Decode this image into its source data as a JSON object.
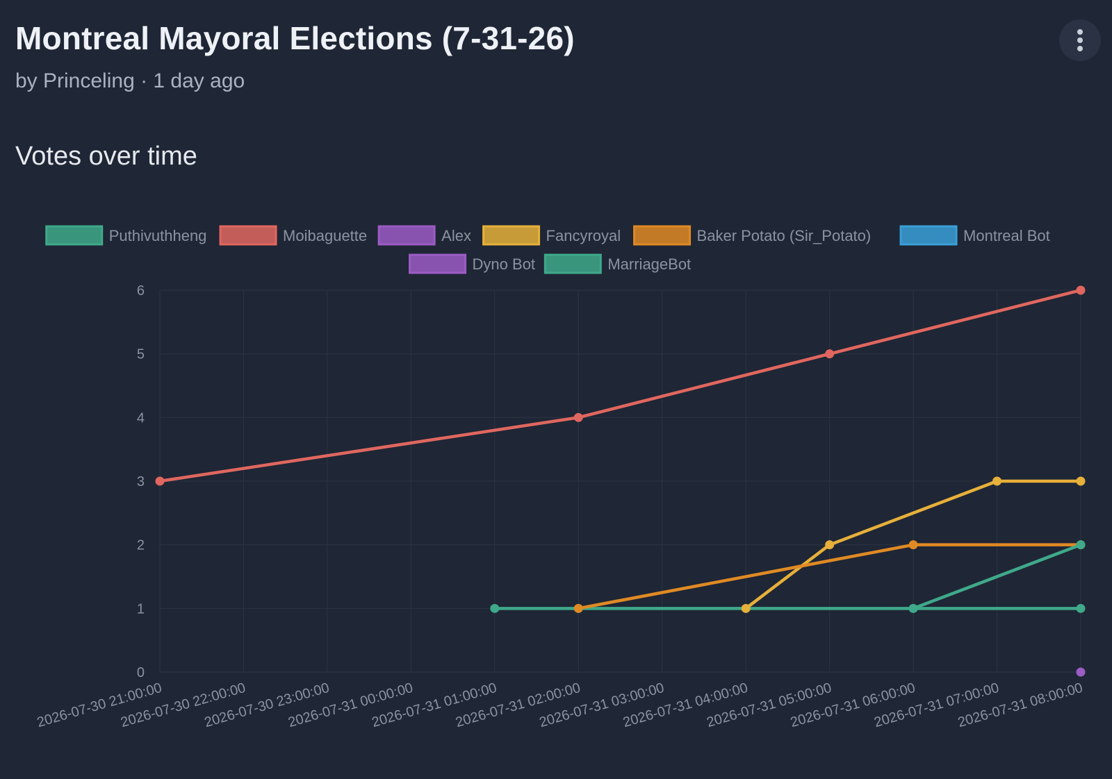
{
  "header": {
    "title": "Montreal Mayoral Elections (7-31-26)",
    "subtitle": "by Princeling · 1 day ago",
    "menu_icon": "more-vertical-icon"
  },
  "section": {
    "title": "Votes over time"
  },
  "colors": {
    "background": "#1f2635",
    "grid": "#2b3242",
    "tick_text": "#8c93a0"
  },
  "chart_data": {
    "type": "line",
    "title": "Votes over time",
    "xlabel": "",
    "ylabel": "",
    "x": [
      "2026-07-30 21:00:00",
      "2026-07-30 22:00:00",
      "2026-07-30 23:00:00",
      "2026-07-31 00:00:00",
      "2026-07-31 01:00:00",
      "2026-07-31 02:00:00",
      "2026-07-31 03:00:00",
      "2026-07-31 04:00:00",
      "2026-07-31 05:00:00",
      "2026-07-31 06:00:00",
      "2026-07-31 07:00:00",
      "2026-07-31 08:00:00"
    ],
    "ylim": [
      0,
      6
    ],
    "yticks": [
      0,
      1,
      2,
      3,
      4,
      5,
      6
    ],
    "grid": true,
    "legend": "top",
    "series": [
      {
        "name": "Puthivuthheng",
        "color": "#3fa98a",
        "points": [
          [
            "2026-07-31 01:00:00",
            1
          ],
          [
            "2026-07-31 02:00:00",
            1
          ],
          [
            "2026-07-31 06:00:00",
            1
          ],
          [
            "2026-07-31 08:00:00",
            1
          ]
        ]
      },
      {
        "name": "Moibaguette",
        "color": "#e0675f",
        "points": [
          [
            "2026-07-30 21:00:00",
            3
          ],
          [
            "2026-07-31 02:00:00",
            4
          ],
          [
            "2026-07-31 05:00:00",
            5
          ],
          [
            "2026-07-31 08:00:00",
            6
          ]
        ]
      },
      {
        "name": "Alex",
        "color": "#9b5cc4",
        "points": []
      },
      {
        "name": "Fancyroyal",
        "color": "#e6b03a",
        "points": [
          [
            "2026-07-31 04:00:00",
            1
          ],
          [
            "2026-07-31 05:00:00",
            2
          ],
          [
            "2026-07-31 07:00:00",
            3
          ],
          [
            "2026-07-31 08:00:00",
            3
          ]
        ]
      },
      {
        "name": "Baker Potato (Sir_Potato)",
        "color": "#e08a24",
        "points": [
          [
            "2026-07-31 02:00:00",
            1
          ],
          [
            "2026-07-31 06:00:00",
            2
          ],
          [
            "2026-07-31 08:00:00",
            2
          ]
        ]
      },
      {
        "name": "Montreal Bot",
        "color": "#3a9fd6",
        "points": []
      },
      {
        "name": "Dyno Bot",
        "color": "#9b5cc4",
        "points": [
          [
            "2026-07-31 08:00:00",
            0
          ]
        ]
      },
      {
        "name": "MarriageBot",
        "color": "#3fa98a",
        "points": [
          [
            "2026-07-31 06:00:00",
            1
          ],
          [
            "2026-07-31 08:00:00",
            2
          ]
        ]
      }
    ]
  }
}
